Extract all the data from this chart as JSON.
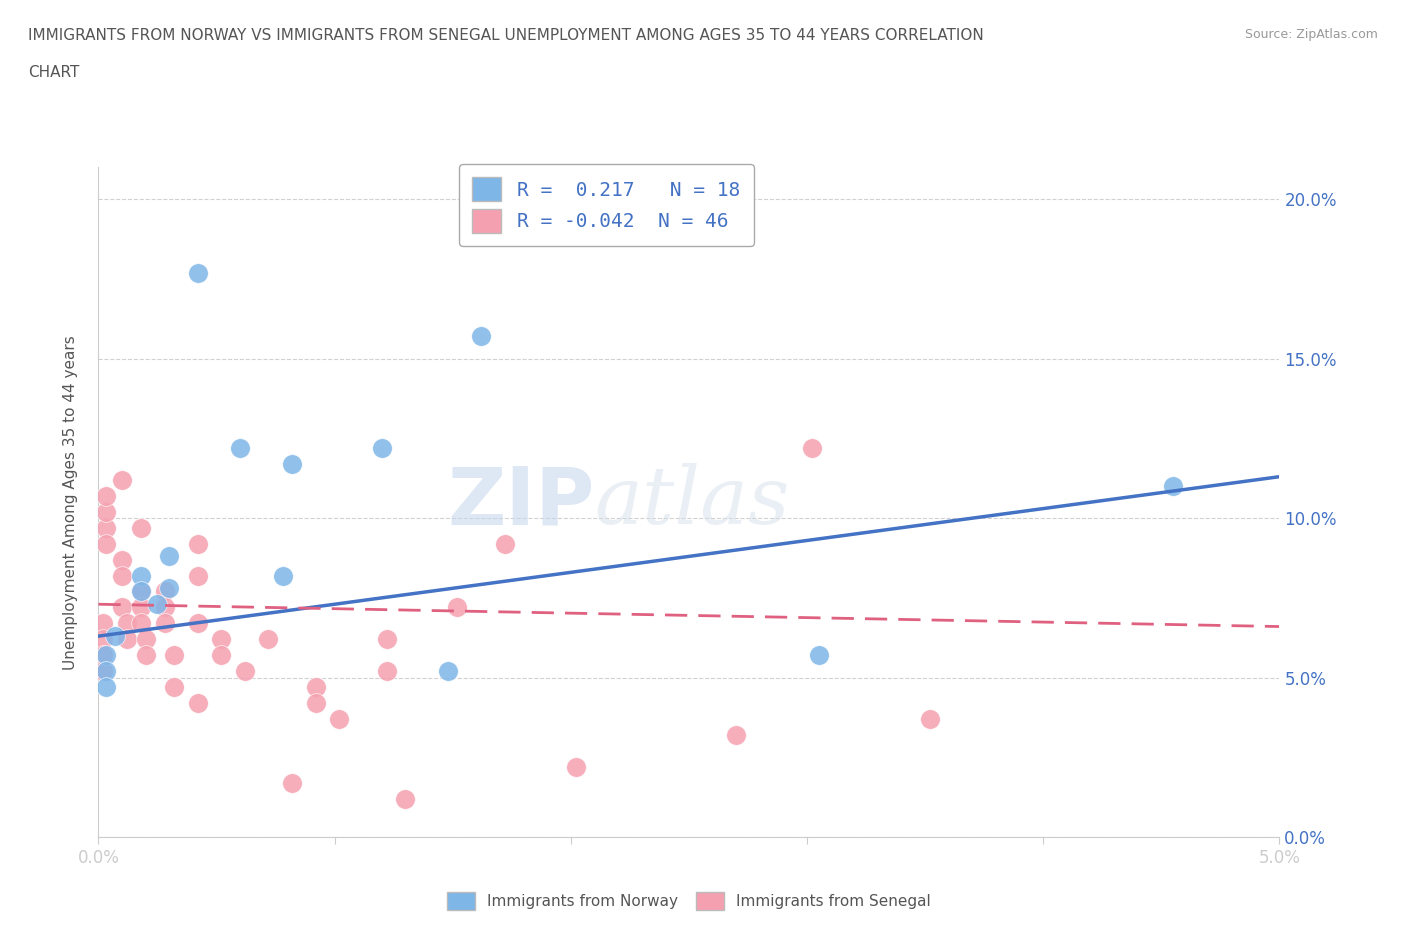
{
  "title_line1": "IMMIGRANTS FROM NORWAY VS IMMIGRANTS FROM SENEGAL UNEMPLOYMENT AMONG AGES 35 TO 44 YEARS CORRELATION",
  "title_line2": "CHART",
  "source": "Source: ZipAtlas.com",
  "ylabel": "Unemployment Among Ages 35 to 44 years",
  "xlim": [
    0.0,
    0.05
  ],
  "ylim": [
    0.0,
    0.21
  ],
  "xticks": [
    0.0,
    0.01,
    0.02,
    0.03,
    0.04,
    0.05
  ],
  "yticks": [
    0.0,
    0.05,
    0.1,
    0.15,
    0.2
  ],
  "norway_color": "#7EB6E8",
  "senegal_color": "#F5A0B0",
  "norway_line_color": "#4472C4",
  "senegal_line_color": "#E06080",
  "norway_R": 0.217,
  "norway_N": 18,
  "senegal_R": -0.042,
  "senegal_N": 46,
  "norway_scatter": [
    [
      0.0003,
      0.057
    ],
    [
      0.0003,
      0.052
    ],
    [
      0.0003,
      0.047
    ],
    [
      0.0007,
      0.063
    ],
    [
      0.0018,
      0.082
    ],
    [
      0.0018,
      0.077
    ],
    [
      0.0025,
      0.073
    ],
    [
      0.003,
      0.088
    ],
    [
      0.003,
      0.078
    ],
    [
      0.0042,
      0.177
    ],
    [
      0.006,
      0.122
    ],
    [
      0.0078,
      0.082
    ],
    [
      0.0082,
      0.117
    ],
    [
      0.012,
      0.122
    ],
    [
      0.0148,
      0.052
    ],
    [
      0.0162,
      0.157
    ],
    [
      0.0305,
      0.057
    ],
    [
      0.0455,
      0.11
    ]
  ],
  "senegal_scatter": [
    [
      0.0002,
      0.067
    ],
    [
      0.0002,
      0.062
    ],
    [
      0.0002,
      0.057
    ],
    [
      0.0002,
      0.052
    ],
    [
      0.0003,
      0.097
    ],
    [
      0.0003,
      0.092
    ],
    [
      0.0003,
      0.102
    ],
    [
      0.0003,
      0.107
    ],
    [
      0.001,
      0.087
    ],
    [
      0.001,
      0.082
    ],
    [
      0.001,
      0.112
    ],
    [
      0.001,
      0.072
    ],
    [
      0.0012,
      0.067
    ],
    [
      0.0012,
      0.062
    ],
    [
      0.0018,
      0.077
    ],
    [
      0.0018,
      0.097
    ],
    [
      0.0018,
      0.072
    ],
    [
      0.0018,
      0.067
    ],
    [
      0.002,
      0.062
    ],
    [
      0.002,
      0.057
    ],
    [
      0.0028,
      0.077
    ],
    [
      0.0028,
      0.072
    ],
    [
      0.0028,
      0.067
    ],
    [
      0.0032,
      0.057
    ],
    [
      0.0032,
      0.047
    ],
    [
      0.0042,
      0.092
    ],
    [
      0.0042,
      0.082
    ],
    [
      0.0042,
      0.067
    ],
    [
      0.0042,
      0.042
    ],
    [
      0.0052,
      0.062
    ],
    [
      0.0052,
      0.057
    ],
    [
      0.0062,
      0.052
    ],
    [
      0.0072,
      0.062
    ],
    [
      0.0082,
      0.017
    ],
    [
      0.0092,
      0.047
    ],
    [
      0.0092,
      0.042
    ],
    [
      0.0102,
      0.037
    ],
    [
      0.0122,
      0.062
    ],
    [
      0.0122,
      0.052
    ],
    [
      0.013,
      0.012
    ],
    [
      0.0152,
      0.072
    ],
    [
      0.0172,
      0.092
    ],
    [
      0.0202,
      0.022
    ],
    [
      0.027,
      0.032
    ],
    [
      0.0302,
      0.122
    ],
    [
      0.0352,
      0.037
    ]
  ],
  "norway_line": [
    [
      0.0,
      0.063
    ],
    [
      0.05,
      0.113
    ]
  ],
  "senegal_line": [
    [
      0.0,
      0.073
    ],
    [
      0.05,
      0.066
    ]
  ],
  "watermark_zip": "ZIP",
  "watermark_atlas": "atlas",
  "background_color": "#ffffff",
  "grid_color": "#cccccc",
  "title_color": "#555555",
  "axis_label_color": "#4472C4",
  "ylabel_color": "#555555",
  "legend_text_color": "#4472C4",
  "source_color": "#999999"
}
